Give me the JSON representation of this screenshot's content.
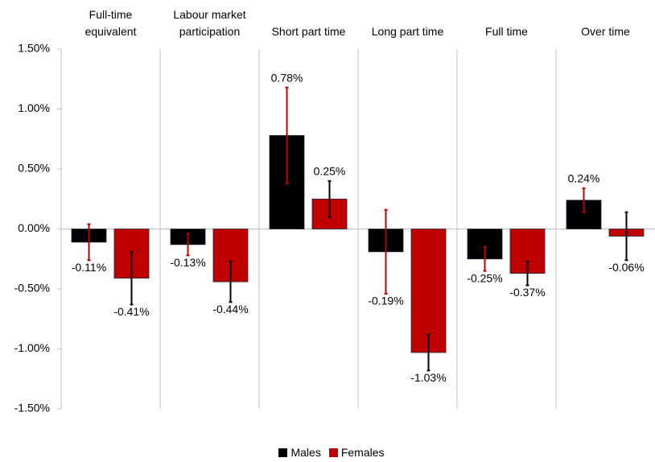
{
  "chart_data": {
    "type": "bar",
    "categories": [
      "Full-time equivalent",
      "Labour market participation",
      "Short part time",
      "Long part time",
      "Full time",
      "Over time"
    ],
    "series": [
      {
        "name": "Males",
        "color": "#000000",
        "error_color": "#c00000",
        "values": [
          -0.11,
          -0.13,
          0.78,
          -0.19,
          -0.25,
          0.24
        ],
        "value_labels": [
          "-0.11%",
          "-0.13%",
          "0.78%",
          "-0.19%",
          "-0.25%",
          "0.24%"
        ],
        "errors": [
          0.15,
          0.09,
          0.4,
          0.35,
          0.1,
          0.1
        ]
      },
      {
        "name": "Females",
        "color": "#c00000",
        "error_color": "#000000",
        "values": [
          -0.41,
          -0.44,
          0.25,
          -1.03,
          -0.37,
          -0.06
        ],
        "value_labels": [
          "-0.41%",
          "-0.44%",
          "0.25%",
          "-1.03%",
          "-0.37%",
          "-0.06%"
        ],
        "errors": [
          0.22,
          0.17,
          0.15,
          0.15,
          0.1,
          0.2
        ]
      }
    ],
    "ylim": [
      -1.5,
      1.5
    ],
    "yticks": [
      {
        "value": -1.5,
        "label": "-1.50%"
      },
      {
        "value": -1.0,
        "label": "-1.00%"
      },
      {
        "value": -0.5,
        "label": "-0.50%"
      },
      {
        "value": 0,
        "label": "0.00%"
      },
      {
        "value": 0.5,
        "label": "0.50%"
      },
      {
        "value": 1.0,
        "label": "1.00%"
      },
      {
        "value": 1.5,
        "label": "1.50%"
      }
    ],
    "legend": "bottom"
  }
}
